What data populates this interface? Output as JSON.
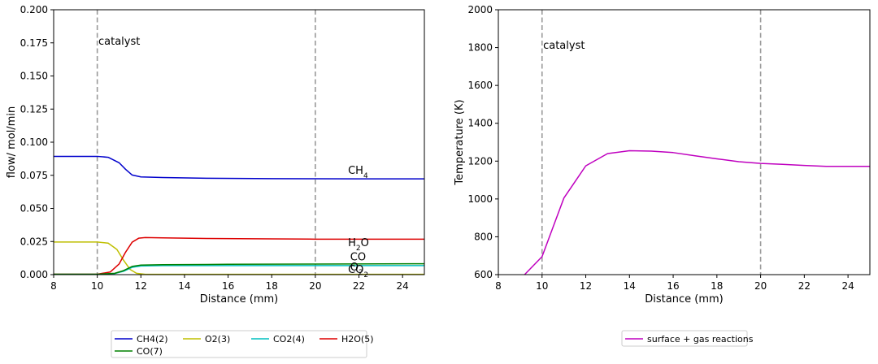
{
  "chart_data": [
    {
      "type": "line",
      "xlabel": "Distance (mm)",
      "ylabel": "flow/ mol/min",
      "xlim": [
        8,
        25
      ],
      "ylim": [
        0,
        0.2
      ],
      "xticks": [
        8,
        10,
        12,
        14,
        16,
        18,
        20,
        22,
        24
      ],
      "yticks": [
        0.0,
        0.025,
        0.05,
        0.075,
        0.1,
        0.125,
        0.15,
        0.175,
        0.2
      ],
      "ytick_labels": [
        "0.000",
        "0.025",
        "0.050",
        "0.075",
        "0.100",
        "0.125",
        "0.150",
        "0.175",
        "0.200"
      ],
      "grid": false,
      "legend_position": "below",
      "vlines": [
        10,
        20
      ],
      "vline_color": "#999999",
      "annotation": {
        "text": "catalyst",
        "x": 10.05,
        "y": 0.176
      },
      "series_labels": [
        {
          "base": "CH",
          "sub": "4",
          "x": 21.5,
          "y": 0.076
        },
        {
          "base": "H",
          "sub": "2",
          "tail": "O",
          "x": 21.5,
          "y": 0.0215
        },
        {
          "base": "CO",
          "x": 21.6,
          "y": 0.0108
        },
        {
          "base": "O",
          "sub": "2",
          "x": 21.6,
          "y": 0.0032
        },
        {
          "base": "CO",
          "sub": "2",
          "x": 21.5,
          "y": 0.0012
        }
      ],
      "series": [
        {
          "name": "CH4(2)",
          "color": "#0000cc",
          "x": [
            8,
            10,
            10.5,
            11,
            11.3,
            11.6,
            12,
            13,
            15,
            18,
            20,
            22,
            25
          ],
          "y": [
            0.0893,
            0.0893,
            0.0886,
            0.0845,
            0.0795,
            0.0752,
            0.0738,
            0.0733,
            0.0728,
            0.0725,
            0.0724,
            0.0723,
            0.0723
          ]
        },
        {
          "name": "O2(3)",
          "color": "#bfbf00",
          "x": [
            8,
            10,
            10.5,
            10.9,
            11.2,
            11.5,
            11.8,
            12.2,
            25
          ],
          "y": [
            0.0246,
            0.0246,
            0.0238,
            0.019,
            0.011,
            0.004,
            0.001,
            0.0002,
            0.0002
          ]
        },
        {
          "name": "CO2(4)",
          "color": "#00bfbf",
          "x": [
            8,
            10,
            10.8,
            11.2,
            11.6,
            12,
            13,
            20,
            25
          ],
          "y": [
            0.0002,
            0.0002,
            0.0008,
            0.0025,
            0.0055,
            0.0065,
            0.0068,
            0.0068,
            0.0068
          ]
        },
        {
          "name": "H2O(5)",
          "color": "#dd0000",
          "x": [
            8,
            10,
            10.6,
            11,
            11.3,
            11.6,
            11.9,
            12.2,
            13,
            15,
            18,
            20,
            25
          ],
          "y": [
            0.0003,
            0.0003,
            0.002,
            0.008,
            0.017,
            0.0245,
            0.0275,
            0.028,
            0.0278,
            0.0273,
            0.027,
            0.0268,
            0.0268
          ]
        },
        {
          "name": "CO(7)",
          "color": "#008000",
          "x": [
            8,
            10,
            10.8,
            11.2,
            11.6,
            12,
            13,
            16,
            20,
            25
          ],
          "y": [
            0.0003,
            0.0003,
            0.001,
            0.003,
            0.0062,
            0.0072,
            0.0075,
            0.0078,
            0.008,
            0.0082
          ]
        }
      ]
    },
    {
      "type": "line",
      "xlabel": "Distance (mm)",
      "ylabel": "Temperature (K)",
      "xlim": [
        8,
        25
      ],
      "ylim": [
        600,
        2000
      ],
      "xticks": [
        8,
        10,
        12,
        14,
        16,
        18,
        20,
        22,
        24
      ],
      "yticks": [
        600,
        800,
        1000,
        1200,
        1400,
        1600,
        1800,
        2000
      ],
      "ytick_labels": [
        "600",
        "800",
        "1000",
        "1200",
        "1400",
        "1600",
        "1800",
        "2000"
      ],
      "grid": false,
      "legend_position": "below",
      "vlines": [
        10,
        20
      ],
      "vline_color": "#999999",
      "annotation": {
        "text": "catalyst",
        "x": 10.05,
        "y": 1810
      },
      "series": [
        {
          "name": "surface + gas reactions",
          "color": "#bf00bf",
          "x": [
            9.2,
            10,
            10.5,
            11,
            11.5,
            12,
            13,
            14,
            15,
            16,
            17,
            18,
            19,
            20,
            21,
            22,
            23,
            24,
            25
          ],
          "y": [
            600,
            695,
            850,
            1005,
            1090,
            1175,
            1240,
            1255,
            1253,
            1245,
            1228,
            1212,
            1197,
            1188,
            1183,
            1177,
            1172,
            1172,
            1172
          ]
        }
      ]
    }
  ]
}
